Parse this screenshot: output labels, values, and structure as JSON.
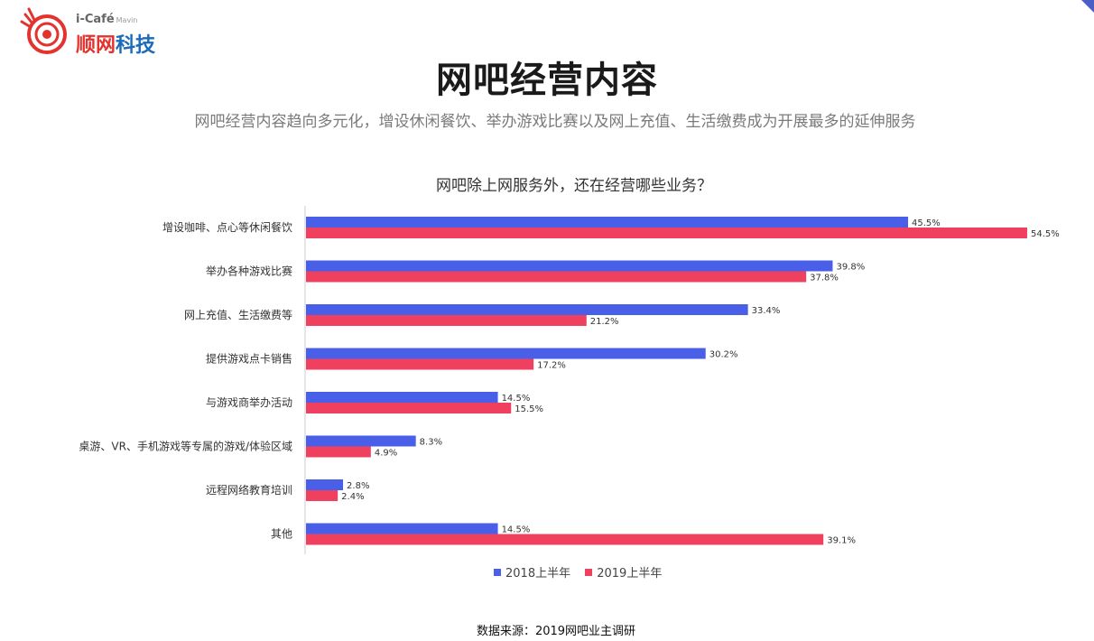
{
  "logo": {
    "en_text": "i-Café",
    "en_sub": "Mavin",
    "cn_part1": "顺网",
    "cn_part2": "科技"
  },
  "page": {
    "title": "网吧经营内容",
    "subtitle": "网吧经营内容趋向多元化，增设休闲餐饮、举办游戏比赛以及网上充值、生活缴费成为开展最多的延伸服务",
    "source": "数据来源：2019网吧业主调研"
  },
  "colors": {
    "series_2018": "#4a5fe8",
    "series_2019": "#f04060",
    "accent": "#4a5ec8"
  },
  "chart_data": {
    "type": "bar",
    "orientation": "horizontal",
    "title": "网吧除上网服务外，还在经营哪些业务？",
    "categories": [
      "增设咖啡、点心等休闲餐饮",
      "举办各种游戏比赛",
      "网上充值、生活缴费等",
      "提供游戏点卡销售",
      "与游戏商举办活动",
      "桌游、VR、手机游戏等专属的游戏/体验区域",
      "远程网络教育培训",
      "其他"
    ],
    "series": [
      {
        "name": "2018上半年",
        "values": [
          45.5,
          39.8,
          33.4,
          30.2,
          14.5,
          8.3,
          2.8,
          14.5
        ],
        "labels": [
          "45.5%",
          "39.8%",
          "33.4%",
          "30.2%",
          "14.5%",
          "8.3%",
          "2.8%",
          "14.5%"
        ]
      },
      {
        "name": "2019上半年",
        "values": [
          54.5,
          37.8,
          21.2,
          17.2,
          15.5,
          4.9,
          2.4,
          39.1
        ],
        "labels": [
          "54.5%",
          "37.8%",
          "21.2%",
          "17.2%",
          "15.5%",
          "4.9%",
          "2.4%",
          "39.1%"
        ]
      }
    ],
    "xlim": [
      0,
      60
    ],
    "grid": false,
    "legend_position": "bottom-center"
  }
}
